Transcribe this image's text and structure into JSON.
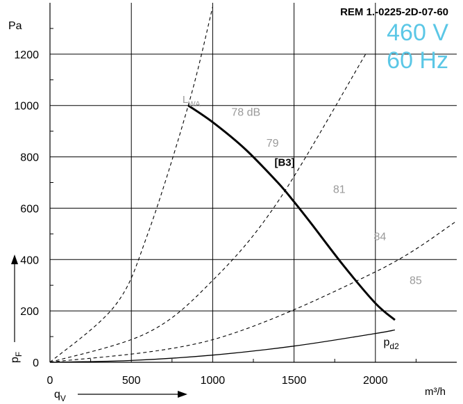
{
  "chart_data": {
    "type": "line",
    "title": "REM 1.-0225-2D-07-60",
    "voltage": "460 V",
    "frequency": "60 Hz",
    "xlabel": "q",
    "xlabel_sub": "V",
    "xunit": "m³/h",
    "ylabel": "p",
    "ylabel_sub": "F",
    "yunit": "Pa",
    "xlim": [
      0,
      2500
    ],
    "ylim": [
      0,
      1400
    ],
    "grid": true,
    "x_ticks": [
      0,
      500,
      1000,
      1500,
      2000
    ],
    "y_ticks": [
      0,
      200,
      400,
      600,
      800,
      1000,
      1200
    ],
    "series": [
      {
        "name": "[B3]",
        "style": "solid-bold",
        "x": [
          850,
          1000,
          1200,
          1400,
          1500,
          1600,
          1800,
          2000,
          2120
        ],
        "y": [
          1000,
          935,
          830,
          700,
          625,
          545,
          380,
          230,
          165
        ]
      },
      {
        "name": "p",
        "name_sub": "d2",
        "style": "solid-thin",
        "x": [
          0,
          500,
          1000,
          1500,
          2000,
          2120
        ],
        "y": [
          0,
          7,
          28,
          63,
          112,
          126
        ]
      }
    ],
    "system_curves": [
      {
        "x": [
          0,
          400,
          600,
          850,
          1000
        ],
        "y": [
          0,
          221,
          498,
          1000,
          1384
        ]
      },
      {
        "x": [
          0,
          600,
          1000,
          1400,
          1940
        ],
        "y": [
          0,
          115,
          319,
          625,
          1200
        ]
      },
      {
        "x": [
          0,
          1000,
          2000,
          2500
        ],
        "y": [
          0,
          88,
          352,
          550
        ]
      }
    ],
    "lwa_label": {
      "text": "L",
      "sub": "WA",
      "x": 840,
      "y": 1010
    },
    "annotations": [
      {
        "text": "78 dB",
        "x": 1115,
        "y": 960
      },
      {
        "text": "79",
        "x": 1330,
        "y": 840
      },
      {
        "text": "81",
        "x": 1740,
        "y": 660
      },
      {
        "text": "84",
        "x": 1990,
        "y": 475
      },
      {
        "text": "85",
        "x": 2210,
        "y": 305
      }
    ]
  }
}
